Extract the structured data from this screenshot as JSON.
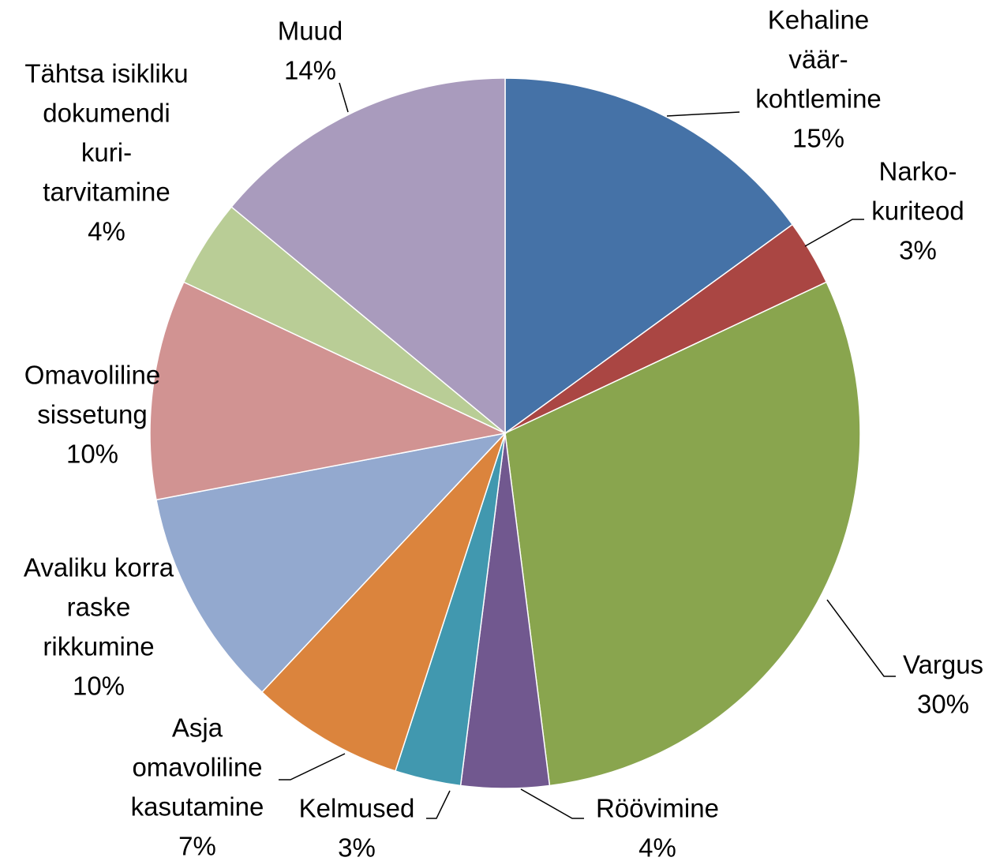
{
  "chart_data": {
    "type": "pie",
    "categories": [
      [
        "Kehaline",
        "väär-",
        "kohtlemine"
      ],
      [
        "Narko-",
        "kuriteod"
      ],
      [
        "Vargus"
      ],
      [
        "Röövimine"
      ],
      [
        "Kelmused"
      ],
      [
        "Asja",
        "omavoliline",
        "kasutamine"
      ],
      [
        "Avaliku korra",
        "raske",
        "rikkumine"
      ],
      [
        "Omavoliline",
        "sissetung"
      ],
      [
        "Tähtsa isikliku",
        "dokumendi",
        "kuri-",
        "tarvitamine"
      ],
      [
        "Muud"
      ]
    ],
    "values": [
      15,
      3,
      30,
      4,
      3,
      7,
      10,
      10,
      4,
      14
    ],
    "value_labels": [
      "15%",
      "3%",
      "30%",
      "4%",
      "3%",
      "7%",
      "10%",
      "10%",
      "4%",
      "14%"
    ],
    "colors": [
      "#4572a7",
      "#aa4643",
      "#89a54e",
      "#71588f",
      "#4198af",
      "#db843d",
      "#93a9cf",
      "#d19392",
      "#b9cd96",
      "#a99bbd"
    ]
  }
}
